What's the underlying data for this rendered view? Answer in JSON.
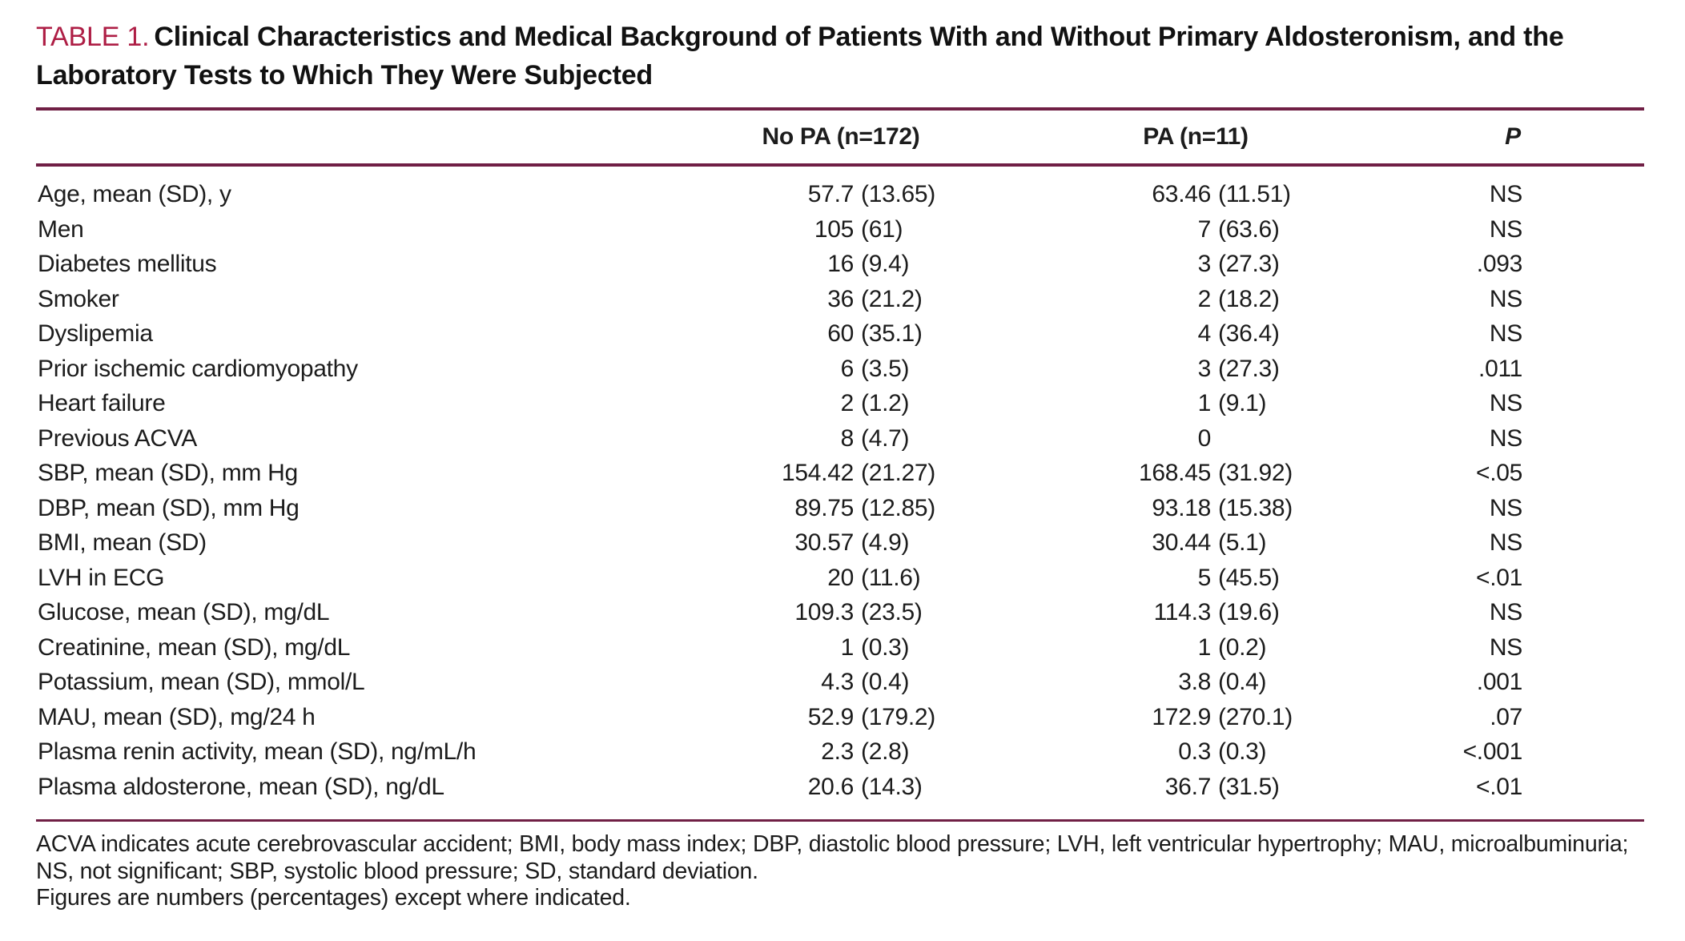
{
  "table": {
    "label": "TABLE 1.",
    "title": "Clinical Characteristics and Medical Background of Patients With and Without Primary Aldosteronism, and the Laboratory Tests to Which They Were Subjected",
    "columns": {
      "no_pa": "No PA (n=172)",
      "pa": "PA (n=11)",
      "p": "P"
    },
    "rows": [
      {
        "label": "Age, mean (SD), y",
        "no_pa_value": "57.7",
        "no_pa_sd": "(13.65)",
        "pa_value": "63.46",
        "pa_sd": "(11.51)",
        "p": "NS"
      },
      {
        "label": "Men",
        "no_pa_value": "105",
        "no_pa_sd": "(61)",
        "pa_value": "7",
        "pa_sd": "(63.6)",
        "p": "NS"
      },
      {
        "label": "Diabetes mellitus",
        "no_pa_value": "16",
        "no_pa_sd": "(9.4)",
        "pa_value": "3",
        "pa_sd": "(27.3)",
        "p": ".093"
      },
      {
        "label": "Smoker",
        "no_pa_value": "36",
        "no_pa_sd": "(21.2)",
        "pa_value": "2",
        "pa_sd": "(18.2)",
        "p": "NS"
      },
      {
        "label": "Dyslipemia",
        "no_pa_value": "60",
        "no_pa_sd": "(35.1)",
        "pa_value": "4",
        "pa_sd": "(36.4)",
        "p": "NS"
      },
      {
        "label": "Prior ischemic cardiomyopathy",
        "no_pa_value": "6",
        "no_pa_sd": "(3.5)",
        "pa_value": "3",
        "pa_sd": "(27.3)",
        "p": ".011"
      },
      {
        "label": "Heart failure",
        "no_pa_value": "2",
        "no_pa_sd": "(1.2)",
        "pa_value": "1",
        "pa_sd": "(9.1)",
        "p": "NS"
      },
      {
        "label": "Previous ACVA",
        "no_pa_value": "8",
        "no_pa_sd": "(4.7)",
        "pa_value": "0",
        "pa_sd": "",
        "p": "NS"
      },
      {
        "label": "SBP, mean (SD), mm Hg",
        "no_pa_value": "154.42",
        "no_pa_sd": "(21.27)",
        "pa_value": "168.45",
        "pa_sd": "(31.92)",
        "p": "<.05"
      },
      {
        "label": "DBP, mean (SD), mm Hg",
        "no_pa_value": "89.75",
        "no_pa_sd": "(12.85)",
        "pa_value": "93.18",
        "pa_sd": "(15.38)",
        "p": "NS"
      },
      {
        "label": "BMI, mean (SD)",
        "no_pa_value": "30.57",
        "no_pa_sd": "(4.9)",
        "pa_value": "30.44",
        "pa_sd": "(5.1)",
        "p": "NS"
      },
      {
        "label": "LVH in ECG",
        "no_pa_value": "20",
        "no_pa_sd": "(11.6)",
        "pa_value": "5",
        "pa_sd": "(45.5)",
        "p": "<.01"
      },
      {
        "label": "Glucose, mean (SD), mg/dL",
        "no_pa_value": "109.3",
        "no_pa_sd": "(23.5)",
        "pa_value": "114.3",
        "pa_sd": "(19.6)",
        "p": "NS"
      },
      {
        "label": "Creatinine, mean (SD), mg/dL",
        "no_pa_value": "1",
        "no_pa_sd": "(0.3)",
        "pa_value": "1",
        "pa_sd": "(0.2)",
        "p": "NS"
      },
      {
        "label": "Potassium, mean (SD), mmol/L",
        "no_pa_value": "4.3",
        "no_pa_sd": "(0.4)",
        "pa_value": "3.8",
        "pa_sd": "(0.4)",
        "p": ".001"
      },
      {
        "label": "MAU, mean (SD), mg/24 h",
        "no_pa_value": "52.9",
        "no_pa_sd": "(179.2)",
        "pa_value": "172.9",
        "pa_sd": "(270.1)",
        "p": ".07"
      },
      {
        "label": "Plasma renin activity, mean (SD), ng/mL/h",
        "no_pa_value": "2.3",
        "no_pa_sd": "(2.8)",
        "pa_value": "0.3",
        "pa_sd": "(0.3)",
        "p": "<.001"
      },
      {
        "label": "Plasma aldosterone, mean (SD), ng/dL",
        "no_pa_value": "20.6",
        "no_pa_sd": "(14.3)",
        "pa_value": "36.7",
        "pa_sd": "(31.5)",
        "p": "<.01"
      }
    ],
    "footnote_abbreviations": "ACVA indicates acute cerebrovascular accident; BMI, body mass index; DBP, diastolic blood pressure; LVH, left ventricular hypertrophy; MAU, microalbuminuria; NS, not significant; SBP, systolic blood pressure; SD, standard deviation.",
    "footnote_note": "Figures are numbers (percentages) except where indicated.",
    "accent_color": "#ae1e45",
    "rule_color": "#701f45"
  }
}
